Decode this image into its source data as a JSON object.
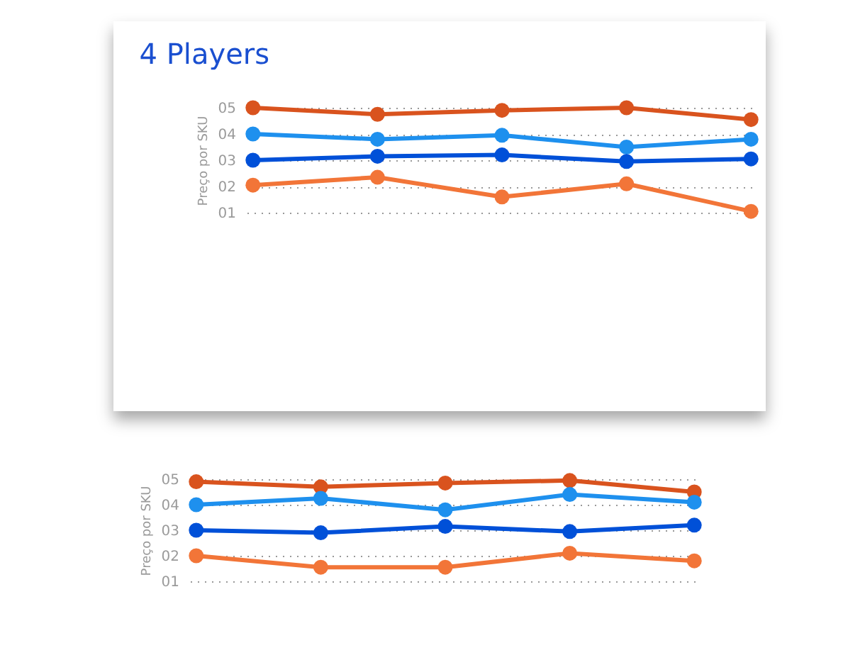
{
  "chart_data": [
    {
      "type": "line",
      "title": "4 Players",
      "ylabel": "Preço por SKU",
      "categories": [
        null,
        null,
        null,
        null,
        null
      ],
      "ylim": [
        1,
        5
      ],
      "yticks": [
        {
          "value": 1,
          "label": "01"
        },
        {
          "value": 2,
          "label": "02"
        },
        {
          "value": 3,
          "label": "03"
        },
        {
          "value": 4,
          "label": "04"
        },
        {
          "value": 5,
          "label": "05"
        }
      ],
      "grid": "y",
      "tick_labels": "y",
      "marker": "circle",
      "line_style": "solid",
      "series": [
        {
          "color": "#d9531e",
          "values": [
            5.0,
            4.75,
            4.9,
            5.0,
            4.55
          ]
        },
        {
          "color": "#1e90ee",
          "values": [
            4.0,
            3.8,
            3.95,
            3.5,
            3.8
          ]
        },
        {
          "color": "#0050d8",
          "values": [
            3.0,
            3.15,
            3.2,
            2.95,
            3.05
          ]
        },
        {
          "color": "#f27538",
          "values": [
            2.05,
            2.35,
            1.6,
            2.1,
            1.05
          ]
        }
      ]
    },
    {
      "type": "line",
      "ylabel": "Preço por SKU",
      "categories": [
        null,
        null,
        null,
        null,
        null
      ],
      "ylim": [
        1,
        5
      ],
      "yticks": [
        {
          "value": 1,
          "label": "01"
        },
        {
          "value": 2,
          "label": "02"
        },
        {
          "value": 3,
          "label": "03"
        },
        {
          "value": 4,
          "label": "04"
        },
        {
          "value": 5,
          "label": "05"
        }
      ],
      "grid": "y",
      "tick_labels": "y",
      "marker": "circle",
      "line_style": "solid",
      "series": [
        {
          "color": "#d9531e",
          "values": [
            4.9,
            4.7,
            4.85,
            4.95,
            4.5
          ]
        },
        {
          "color": "#1e90ee",
          "values": [
            4.0,
            4.25,
            3.8,
            4.4,
            4.1
          ]
        },
        {
          "color": "#0050d8",
          "values": [
            3.0,
            2.9,
            3.15,
            2.95,
            3.2
          ]
        },
        {
          "color": "#f27538",
          "values": [
            2.0,
            1.55,
            1.55,
            2.1,
            1.8
          ]
        }
      ]
    }
  ]
}
